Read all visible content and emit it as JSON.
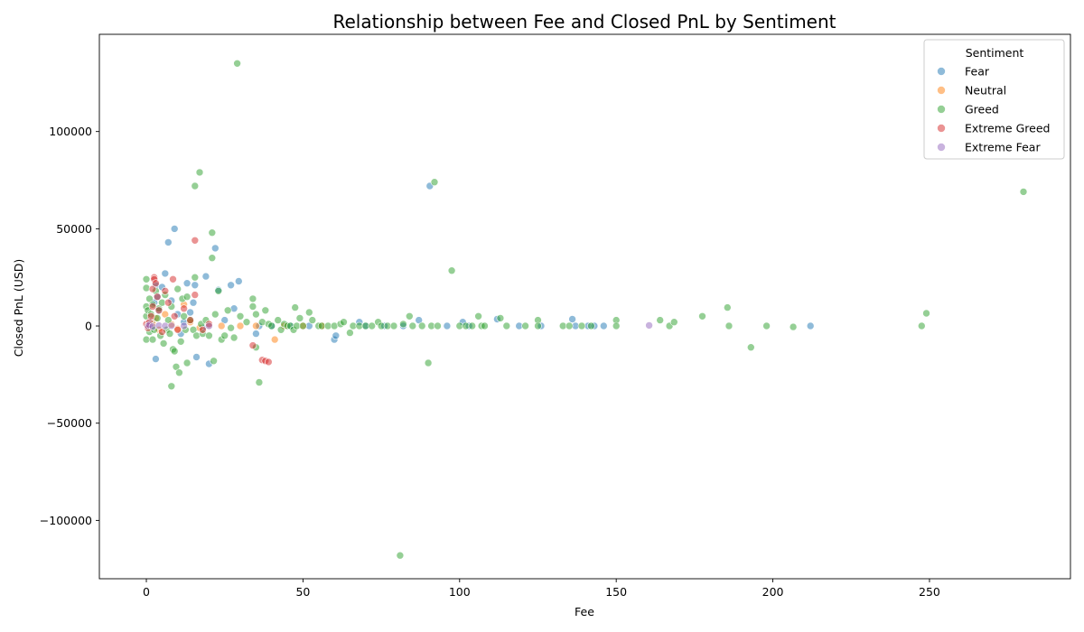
{
  "chart_data": {
    "type": "scatter",
    "title": "Relationship between Fee and Closed PnL by Sentiment",
    "xlabel": "Fee",
    "ylabel": "Closed PnL (USD)",
    "xlim": [
      -15,
      295
    ],
    "ylim": [
      -130000,
      150000
    ],
    "xticks": [
      0,
      50,
      100,
      150,
      200,
      250
    ],
    "yticks": [
      -100000,
      -50000,
      0,
      50000,
      100000
    ],
    "xtick_labels": [
      "0",
      "50",
      "100",
      "150",
      "200",
      "250"
    ],
    "ytick_labels": [
      "−100000",
      "−50000",
      "0",
      "50000",
      "100000"
    ],
    "grid": false,
    "legend": {
      "title": "Sentiment",
      "placement": "top-right"
    },
    "series": [
      {
        "name": "Fear",
        "color": "#1f77b4",
        "points": [
          [
            0.5,
            200
          ],
          [
            1,
            1500
          ],
          [
            1.5,
            -800
          ],
          [
            2,
            3000
          ],
          [
            2.5,
            12000
          ],
          [
            3,
            21000
          ],
          [
            3.5,
            15000
          ],
          [
            4,
            8000
          ],
          [
            5,
            20000
          ],
          [
            6,
            27000
          ],
          [
            7,
            43000
          ],
          [
            8,
            13000
          ],
          [
            9,
            50000
          ],
          [
            10,
            6000
          ],
          [
            11,
            -4000
          ],
          [
            12,
            2000
          ],
          [
            13,
            22000
          ],
          [
            14,
            7000
          ],
          [
            15,
            12000
          ],
          [
            15.5,
            21000
          ],
          [
            16,
            -16000
          ],
          [
            18,
            -1000
          ],
          [
            19,
            25500
          ],
          [
            20,
            -19500
          ],
          [
            22,
            40000
          ],
          [
            23,
            18500
          ],
          [
            25,
            3000
          ],
          [
            27,
            21000
          ],
          [
            28,
            9000
          ],
          [
            29.5,
            23000
          ],
          [
            3,
            -17000
          ],
          [
            35,
            -4000
          ],
          [
            36,
            0
          ],
          [
            40,
            0
          ],
          [
            46,
            0
          ],
          [
            52,
            0
          ],
          [
            60,
            -7000
          ],
          [
            60.5,
            -5000
          ],
          [
            68,
            2000
          ],
          [
            70,
            0
          ],
          [
            76,
            0
          ],
          [
            82,
            0
          ],
          [
            87,
            3000
          ],
          [
            90.5,
            72000
          ],
          [
            96,
            0
          ],
          [
            101,
            2000
          ],
          [
            103,
            0
          ],
          [
            112,
            3500
          ],
          [
            119,
            0
          ],
          [
            126,
            0
          ],
          [
            136,
            3500
          ],
          [
            137,
            0
          ],
          [
            141,
            0
          ],
          [
            143,
            0
          ],
          [
            146,
            0
          ],
          [
            212,
            0
          ]
        ]
      },
      {
        "name": "Neutral",
        "color": "#ff7f0e",
        "points": [
          [
            0.5,
            300
          ],
          [
            1,
            -500
          ],
          [
            2,
            1000
          ],
          [
            3,
            4000
          ],
          [
            4,
            -2000
          ],
          [
            6,
            6000
          ],
          [
            8,
            800
          ],
          [
            10,
            -1500
          ],
          [
            12,
            11000
          ],
          [
            14,
            2000
          ],
          [
            17,
            -1000
          ],
          [
            20,
            500
          ],
          [
            24,
            0
          ],
          [
            30,
            0
          ],
          [
            35,
            0
          ],
          [
            41,
            -7000
          ],
          [
            44,
            0
          ],
          [
            50,
            0
          ],
          [
            56,
            0
          ]
        ]
      },
      {
        "name": "Greed",
        "color": "#2ca02c",
        "points": [
          [
            0,
            24000
          ],
          [
            0,
            19500
          ],
          [
            0,
            10000
          ],
          [
            0,
            5000
          ],
          [
            0,
            -7000
          ],
          [
            0.5,
            8000
          ],
          [
            1,
            14000
          ],
          [
            1,
            -3000
          ],
          [
            1.5,
            6000
          ],
          [
            2,
            -7000
          ],
          [
            2,
            11000
          ],
          [
            2.5,
            -2000
          ],
          [
            3,
            18000
          ],
          [
            3.5,
            4000
          ],
          [
            4,
            9000
          ],
          [
            4.5,
            -5000
          ],
          [
            5,
            12000
          ],
          [
            5.5,
            -9000
          ],
          [
            6,
            16000
          ],
          [
            6.5,
            -2000
          ],
          [
            7,
            3000
          ],
          [
            7.5,
            -4000
          ],
          [
            8,
            10000
          ],
          [
            8,
            -31000
          ],
          [
            8.5,
            -12000
          ],
          [
            9,
            -13000
          ],
          [
            9.5,
            -21000
          ],
          [
            10,
            19000
          ],
          [
            10.5,
            -24000
          ],
          [
            11,
            -8000
          ],
          [
            11.5,
            14000
          ],
          [
            12,
            5000
          ],
          [
            12.5,
            -2000
          ],
          [
            13,
            15000
          ],
          [
            13,
            -19000
          ],
          [
            14,
            3000
          ],
          [
            15,
            -2000
          ],
          [
            15.5,
            25000
          ],
          [
            15.5,
            72000
          ],
          [
            16,
            -5000
          ],
          [
            17,
            79000
          ],
          [
            17.5,
            1000
          ],
          [
            18,
            -4000
          ],
          [
            19,
            3000
          ],
          [
            20,
            -5000
          ],
          [
            21,
            48000
          ],
          [
            21,
            35000
          ],
          [
            21.5,
            -18000
          ],
          [
            22,
            6000
          ],
          [
            23,
            18000
          ],
          [
            24,
            -7000
          ],
          [
            25,
            -5000
          ],
          [
            26,
            8000
          ],
          [
            27,
            -1000
          ],
          [
            28,
            -6000
          ],
          [
            29,
            135000
          ],
          [
            30,
            5000
          ],
          [
            32,
            2000
          ],
          [
            34,
            14000
          ],
          [
            34,
            10000
          ],
          [
            35,
            -11000
          ],
          [
            35,
            6000
          ],
          [
            36,
            -29000
          ],
          [
            37,
            2000
          ],
          [
            38,
            8000
          ],
          [
            39,
            1000
          ],
          [
            40,
            0
          ],
          [
            42,
            3000
          ],
          [
            43,
            -2000
          ],
          [
            44,
            1000
          ],
          [
            45,
            0
          ],
          [
            46,
            0
          ],
          [
            47,
            -2000
          ],
          [
            47.5,
            9500
          ],
          [
            48,
            0
          ],
          [
            49,
            4000
          ],
          [
            50,
            0
          ],
          [
            52,
            7000
          ],
          [
            53,
            3000
          ],
          [
            55,
            0
          ],
          [
            56,
            0
          ],
          [
            58,
            0
          ],
          [
            60,
            0
          ],
          [
            62,
            1000
          ],
          [
            63,
            2000
          ],
          [
            65,
            -3500
          ],
          [
            66,
            0
          ],
          [
            68,
            0
          ],
          [
            70,
            0
          ],
          [
            72,
            0
          ],
          [
            74,
            2000
          ],
          [
            75,
            0
          ],
          [
            77,
            0
          ],
          [
            79,
            0
          ],
          [
            81,
            -118000
          ],
          [
            82,
            1000
          ],
          [
            84,
            5000
          ],
          [
            85,
            0
          ],
          [
            88,
            0
          ],
          [
            90,
            -19000
          ],
          [
            91,
            0
          ],
          [
            92,
            74000
          ],
          [
            93,
            0
          ],
          [
            97.5,
            28500
          ],
          [
            100,
            0
          ],
          [
            102,
            0
          ],
          [
            104,
            0
          ],
          [
            106,
            5000
          ],
          [
            107,
            0
          ],
          [
            108,
            0
          ],
          [
            113,
            4000
          ],
          [
            115,
            0
          ],
          [
            121,
            0
          ],
          [
            125,
            3000
          ],
          [
            125,
            0
          ],
          [
            133,
            0
          ],
          [
            135,
            0
          ],
          [
            139,
            0
          ],
          [
            142,
            0
          ],
          [
            150,
            3000
          ],
          [
            150,
            0
          ],
          [
            164,
            3000
          ],
          [
            167,
            0
          ],
          [
            168.5,
            2000
          ],
          [
            177.5,
            5000
          ],
          [
            185.5,
            9500
          ],
          [
            186,
            0
          ],
          [
            193,
            -11000
          ],
          [
            198,
            0
          ],
          [
            206.5,
            -500
          ],
          [
            247.5,
            0
          ],
          [
            249,
            6500
          ],
          [
            280,
            69000
          ]
        ]
      },
      {
        "name": "Extreme Greed",
        "color": "#d62728",
        "points": [
          [
            0,
            1000
          ],
          [
            0.5,
            -1000
          ],
          [
            1,
            2000
          ],
          [
            1.5,
            5000
          ],
          [
            2,
            10000
          ],
          [
            2,
            19000
          ],
          [
            2.5,
            25000
          ],
          [
            2.5,
            24000
          ],
          [
            3,
            22000
          ],
          [
            3.5,
            15000
          ],
          [
            4,
            8000
          ],
          [
            5,
            -3000
          ],
          [
            6,
            18000
          ],
          [
            7,
            12000
          ],
          [
            8.5,
            24000
          ],
          [
            9,
            5000
          ],
          [
            10,
            -2000
          ],
          [
            12,
            9000
          ],
          [
            14,
            3000
          ],
          [
            15.5,
            44000
          ],
          [
            15.5,
            16000
          ],
          [
            18,
            -2000
          ],
          [
            20,
            1000
          ],
          [
            34,
            -10000
          ],
          [
            37,
            -17500
          ],
          [
            38,
            -18000
          ],
          [
            39,
            -18500
          ]
        ]
      },
      {
        "name": "Extreme Fear",
        "color": "#9467bd",
        "points": [
          [
            0.5,
            0
          ],
          [
            1,
            500
          ],
          [
            2,
            -300
          ],
          [
            4,
            200
          ],
          [
            6,
            0
          ],
          [
            8,
            100
          ],
          [
            12,
            0
          ],
          [
            20,
            0
          ],
          [
            160.5,
            300
          ]
        ]
      }
    ]
  }
}
